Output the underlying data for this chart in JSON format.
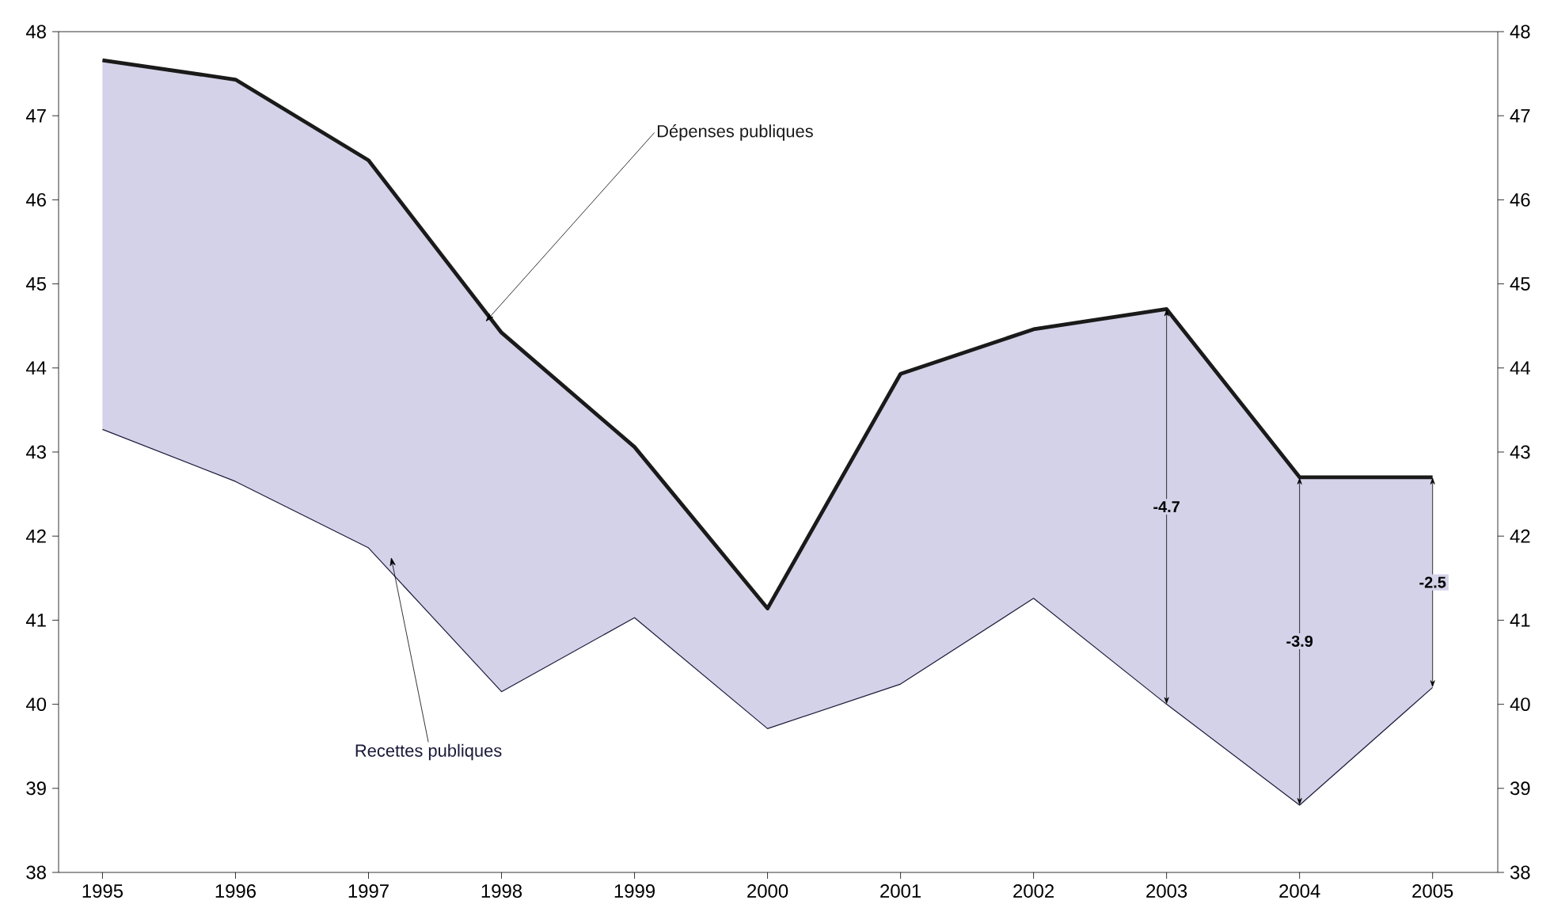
{
  "chart_data": {
    "type": "line",
    "x": [
      1995,
      1996,
      1997,
      1998,
      1999,
      2000,
      2001,
      2002,
      2003,
      2004,
      2005
    ],
    "xlim": [
      1994.67,
      2005.49
    ],
    "xticks": [
      1995,
      1996,
      1997,
      1998,
      1999,
      2000,
      2001,
      2002,
      2003,
      2004,
      2005
    ],
    "series": [
      {
        "name": "Dépenses publiques",
        "color": "#1a1a1a",
        "values": [
          47.66,
          47.43,
          46.47,
          44.42,
          43.06,
          41.14,
          43.93,
          44.46,
          44.7,
          42.7,
          42.7
        ],
        "lower": [
          43.27,
          42.65,
          41.86,
          40.15,
          41.03,
          39.71,
          40.24,
          41.26,
          40.0,
          38.8,
          40.2
        ],
        "upper": [
          47.66,
          47.43,
          46.47,
          44.42,
          43.06,
          41.14,
          43.93,
          44.46,
          44.7,
          42.7,
          42.7
        ]
      },
      {
        "name": "Recettes publiques",
        "color": "#1a1a3a",
        "values": [
          43.27,
          42.65,
          41.86,
          40.15,
          41.03,
          39.71,
          40.24,
          41.26,
          40.0,
          38.8,
          40.2
        ]
      }
    ],
    "ylim": [
      38,
      48
    ],
    "yticks": [
      38,
      39,
      40,
      41,
      42,
      43,
      44,
      45,
      46,
      47,
      48
    ],
    "y2lim": [
      38,
      48
    ],
    "y2ticks": [
      38,
      39,
      40,
      41,
      42,
      43,
      44,
      45,
      46,
      47,
      48
    ],
    "annotations": [
      {
        "text": "-4.7",
        "x": 2003,
        "y": 42.35
      },
      {
        "text": "-3.9",
        "x": 2004,
        "y": 40.75
      },
      {
        "text": "-2.5",
        "x": 2005,
        "y": 41.45
      }
    ],
    "grid": false
  }
}
